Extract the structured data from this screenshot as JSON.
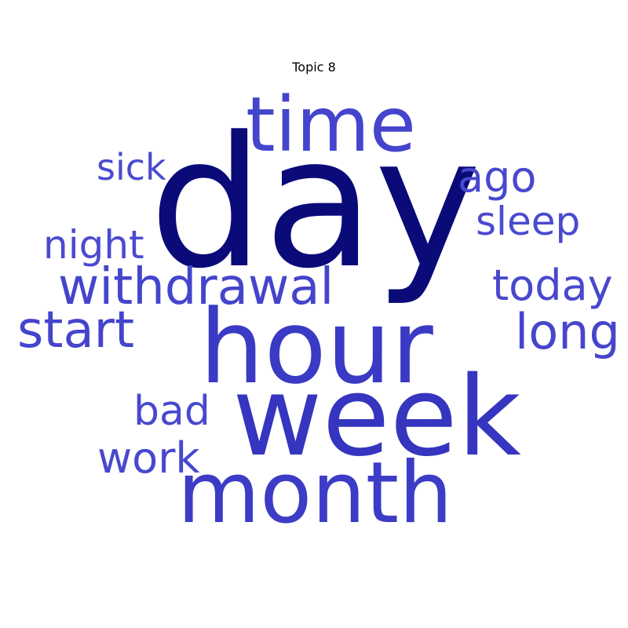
{
  "title": "Topic 8",
  "words": [
    {
      "key": "day",
      "text": "day",
      "color": "#0a0a78"
    },
    {
      "key": "time",
      "text": "time",
      "color": "#4444cc"
    },
    {
      "key": "hour",
      "text": "hour",
      "color": "#3a3ac4"
    },
    {
      "key": "week",
      "text": "week",
      "color": "#3535c0"
    },
    {
      "key": "month",
      "text": "month",
      "color": "#3c3cc6"
    },
    {
      "key": "withdrawal",
      "text": "withdrawal",
      "color": "#4444cc"
    },
    {
      "key": "start",
      "text": "start",
      "color": "#4444cc"
    },
    {
      "key": "sick",
      "text": "sick",
      "color": "#4a4ad0"
    },
    {
      "key": "night",
      "text": "night",
      "color": "#4a4ad0"
    },
    {
      "key": "ago",
      "text": "ago",
      "color": "#4848ce"
    },
    {
      "key": "sleep",
      "text": "sleep",
      "color": "#4a4ad0"
    },
    {
      "key": "today",
      "text": "today",
      "color": "#4848ce"
    },
    {
      "key": "long",
      "text": "long",
      "color": "#4646cc"
    },
    {
      "key": "bad",
      "text": "bad",
      "color": "#4848ce"
    },
    {
      "key": "work",
      "text": "work",
      "color": "#4848ce"
    }
  ]
}
